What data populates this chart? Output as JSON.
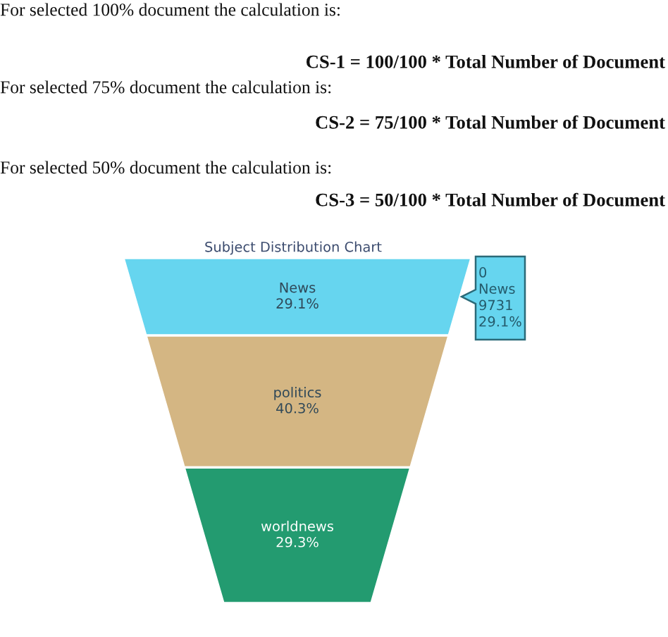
{
  "chart_data": {
    "type": "other",
    "title": "Subject Distribution Chart",
    "categories": [
      "News",
      "politics",
      "worldnews"
    ],
    "values": [
      29.1,
      40.3,
      29.3
    ],
    "value_labels": [
      "29.1%",
      "40.3%",
      "29.3%"
    ],
    "colors": [
      "#66d5ef",
      "#d4b683",
      "#239b70"
    ],
    "annotations": [
      "For selected 100% document the calculation is:",
      "CS-1 = 100/100 * Total Number of Document",
      "For selected 75% document the calculation is:",
      "CS-2 = 75/100 * Total Number of Document",
      "For selected 50% document the calculation is:",
      "CS-3 = 50/100 * Total Number of Document",
      "0\nNews\n9731\n29.1%"
    ]
  }
}
